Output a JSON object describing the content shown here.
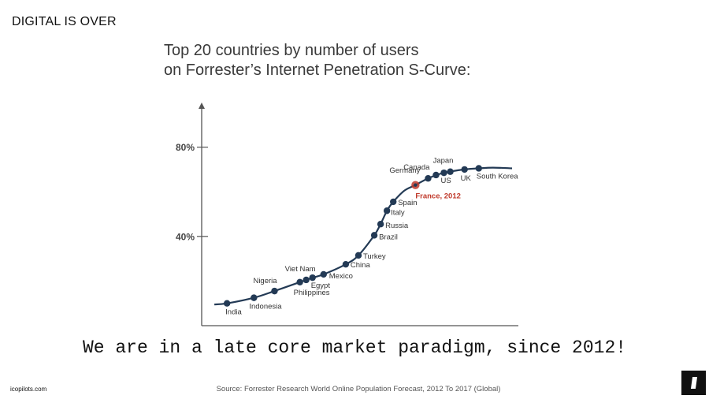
{
  "header": {
    "section_title": "DIGITAL IS OVER"
  },
  "chart_data": {
    "type": "line",
    "title_lines": [
      "Top 20 countries by number of users",
      "on Forrester’s Internet Penetration S-Curve:"
    ],
    "y_ticks": [
      {
        "value": 80,
        "label": "80%"
      },
      {
        "value": 40,
        "label": "40%"
      }
    ],
    "ylim": [
      0,
      100
    ],
    "xlim": [
      0,
      100
    ],
    "series_color": "#233a55",
    "highlight_color": "#c0392b",
    "points": [
      {
        "name": "India",
        "x": 8,
        "y": 10,
        "label": "India",
        "lx": -2,
        "ly": 14,
        "anchor": "start"
      },
      {
        "name": "Indonesia",
        "x": 16.5,
        "y": 12.5,
        "label": "Indonesia",
        "lx": -6,
        "ly": 14,
        "anchor": "start"
      },
      {
        "name": "Nigeria",
        "x": 23,
        "y": 15.5,
        "label": "Nigeria",
        "lx": -27,
        "ly": -10,
        "anchor": "start"
      },
      {
        "name": "Philippines",
        "x": 31,
        "y": 19.5,
        "label": "Philippines",
        "lx": -8,
        "ly": 16,
        "anchor": "start"
      },
      {
        "name": "Viet Nam",
        "x": 33,
        "y": 20.5,
        "label": "Viet Nam",
        "lx": -27,
        "ly": -11,
        "anchor": "start"
      },
      {
        "name": "Egypt",
        "x": 35,
        "y": 21.5,
        "label": "Egypt",
        "lx": -2,
        "ly": 13,
        "anchor": "start"
      },
      {
        "name": "Mexico",
        "x": 38.5,
        "y": 23,
        "label": "Mexico",
        "lx": 7,
        "ly": 5,
        "anchor": "start"
      },
      {
        "name": "China",
        "x": 45.5,
        "y": 27.5,
        "label": "China",
        "lx": 6,
        "ly": 4,
        "anchor": "start"
      },
      {
        "name": "Turkey",
        "x": 49.5,
        "y": 31.5,
        "label": "Turkey",
        "lx": 6,
        "ly": 4,
        "anchor": "start"
      },
      {
        "name": "Brazil",
        "x": 54.5,
        "y": 40.5,
        "label": "Brazil",
        "lx": 6,
        "ly": 5,
        "anchor": "start"
      },
      {
        "name": "Russia",
        "x": 56.5,
        "y": 45.5,
        "label": "Russia",
        "lx": 6,
        "ly": 5,
        "anchor": "start"
      },
      {
        "name": "Italy",
        "x": 58.5,
        "y": 51.5,
        "label": "Italy",
        "lx": 5,
        "ly": 5,
        "anchor": "start"
      },
      {
        "name": "Spain",
        "x": 60.5,
        "y": 55.5,
        "label": "Spain",
        "lx": 6,
        "ly": 4,
        "anchor": "start"
      },
      {
        "name": "France, 2012",
        "x": 67.5,
        "y": 63,
        "label": "France, 2012",
        "lx": 0,
        "ly": 17,
        "anchor": "start",
        "highlight": true
      },
      {
        "name": "Germany",
        "x": 71.5,
        "y": 66,
        "label": "Germany",
        "lx": -10,
        "ly": -7,
        "anchor": "end"
      },
      {
        "name": "Canada",
        "x": 74,
        "y": 67.5,
        "label": "Canada",
        "lx": -8,
        "ly": -7,
        "anchor": "end"
      },
      {
        "name": "US",
        "x": 76.5,
        "y": 68.5,
        "label": "US",
        "lx": -4,
        "ly": 13,
        "anchor": "start"
      },
      {
        "name": "Japan",
        "x": 78.5,
        "y": 69,
        "label": "Japan",
        "lx": -22,
        "ly": -11,
        "anchor": "start"
      },
      {
        "name": "UK",
        "x": 83,
        "y": 70,
        "label": "UK",
        "lx": -5,
        "ly": 14,
        "anchor": "start"
      },
      {
        "name": "South Korea",
        "x": 87.5,
        "y": 70.5,
        "label": "South Korea",
        "lx": -3,
        "ly": 13,
        "anchor": "start"
      }
    ],
    "curve": [
      [
        4,
        9.5
      ],
      [
        8,
        10
      ],
      [
        16.5,
        12.5
      ],
      [
        23,
        15.5
      ],
      [
        31,
        19.5
      ],
      [
        35,
        21.5
      ],
      [
        38.5,
        23
      ],
      [
        45.5,
        27.5
      ],
      [
        49.5,
        31.5
      ],
      [
        54.5,
        40.5
      ],
      [
        56.5,
        45.5
      ],
      [
        58.5,
        51.5
      ],
      [
        60.5,
        55.5
      ],
      [
        64,
        60.5
      ],
      [
        67.5,
        63
      ],
      [
        71.5,
        66
      ],
      [
        76.5,
        68.5
      ],
      [
        83,
        70
      ],
      [
        87.5,
        70.5
      ],
      [
        92,
        70.8
      ],
      [
        98,
        70.5
      ]
    ]
  },
  "tagline": "We are in a late core market paradigm, since 2012!",
  "footer": {
    "site": "icopilots.com",
    "source": "Source: Forrester Research World Online Population Forecast, 2012 To 2017 (Global)"
  }
}
